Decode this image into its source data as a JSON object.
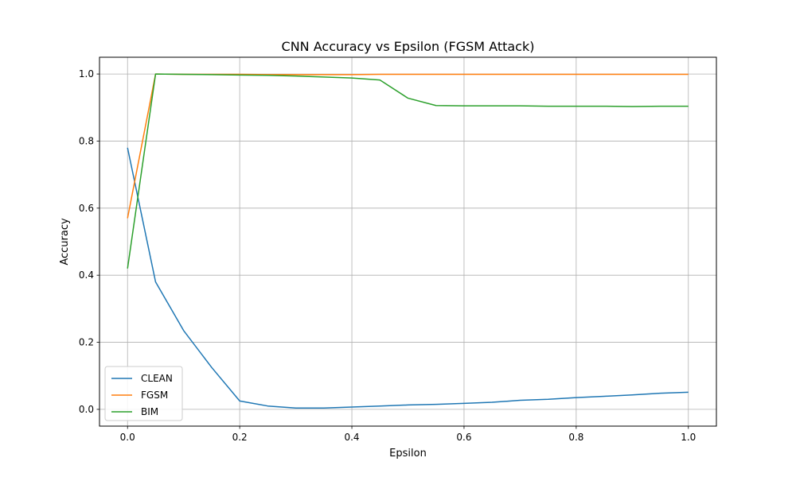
{
  "chart_data": {
    "type": "line",
    "title": "CNN Accuracy vs Epsilon (FGSM Attack)",
    "xlabel": "Epsilon",
    "ylabel": "Accuracy",
    "xlim": [
      -0.05,
      1.05
    ],
    "ylim": [
      -0.05,
      1.05
    ],
    "xticks": [
      0.0,
      0.2,
      0.4,
      0.6,
      0.8,
      1.0
    ],
    "xtick_labels": [
      "0.0",
      "0.2",
      "0.4",
      "0.6",
      "0.8",
      "1.0"
    ],
    "yticks": [
      0.0,
      0.2,
      0.4,
      0.6,
      0.8,
      1.0
    ],
    "ytick_labels": [
      "0.0",
      "0.2",
      "0.4",
      "0.6",
      "0.8",
      "1.0"
    ],
    "grid": true,
    "legend_position": "bottom-left",
    "x": [
      0.0,
      0.05,
      0.1,
      0.15,
      0.2,
      0.25,
      0.3,
      0.35,
      0.4,
      0.45,
      0.5,
      0.55,
      0.6,
      0.65,
      0.7,
      0.75,
      0.8,
      0.85,
      0.9,
      0.95,
      1.0
    ],
    "series": [
      {
        "name": "CLEAN",
        "color": "#1f77b4",
        "values": [
          0.78,
          0.38,
          0.235,
          0.125,
          0.025,
          0.01,
          0.004,
          0.004,
          0.007,
          0.01,
          0.013,
          0.015,
          0.018,
          0.021,
          0.027,
          0.03,
          0.035,
          0.039,
          0.043,
          0.048,
          0.051
        ]
      },
      {
        "name": "FGSM",
        "color": "#ff7f0e",
        "values": [
          0.57,
          1.0,
          0.999,
          0.999,
          0.999,
          0.998,
          0.998,
          0.998,
          0.998,
          0.999,
          0.999,
          0.999,
          0.999,
          0.999,
          0.999,
          0.999,
          0.999,
          0.999,
          0.999,
          0.999,
          0.999
        ]
      },
      {
        "name": "BIM",
        "color": "#2ca02c",
        "values": [
          0.42,
          1.0,
          0.999,
          0.998,
          0.997,
          0.996,
          0.994,
          0.991,
          0.988,
          0.982,
          0.928,
          0.906,
          0.905,
          0.905,
          0.905,
          0.904,
          0.904,
          0.904,
          0.903,
          0.904,
          0.904
        ]
      }
    ]
  }
}
